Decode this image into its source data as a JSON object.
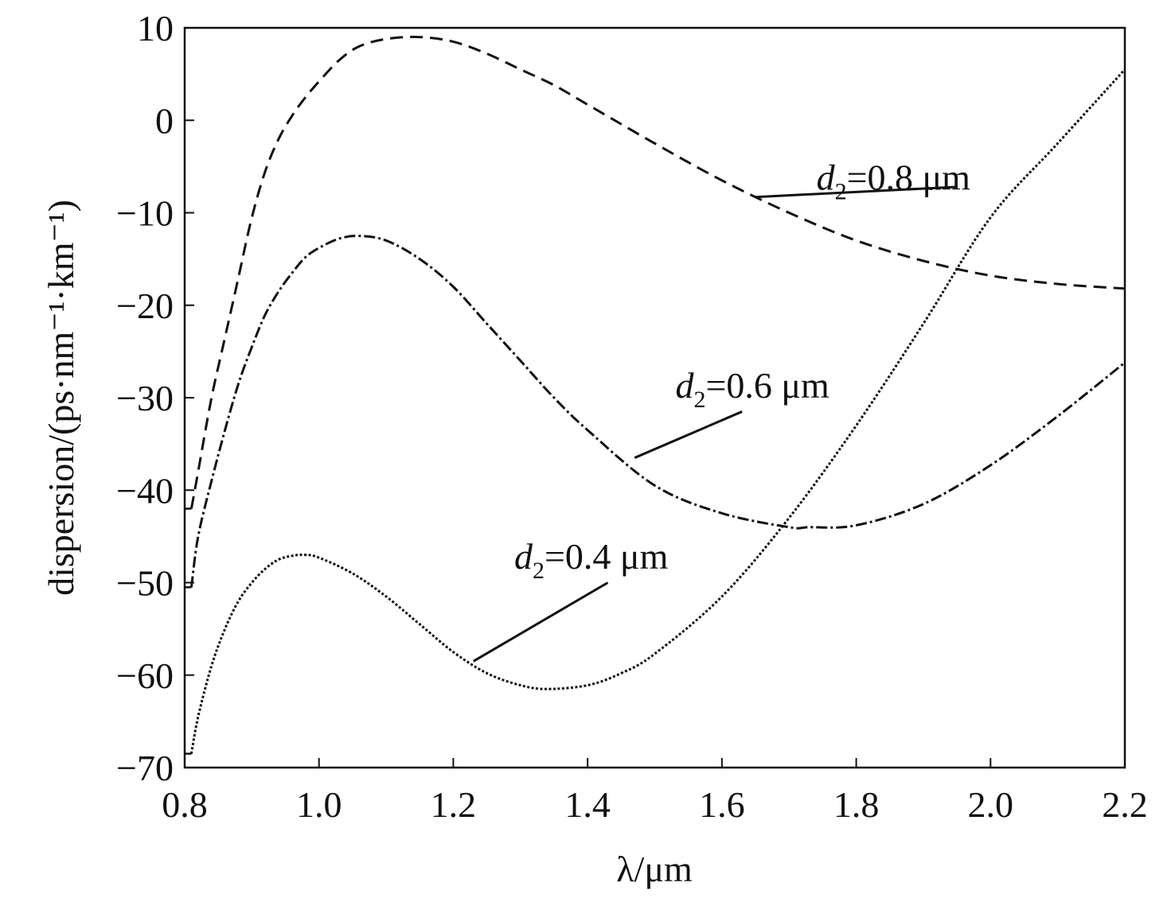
{
  "chart_data": {
    "type": "line",
    "title": "",
    "xlabel": "λ/μm",
    "ylabel": "dispersion/(ps·nm⁻¹·km⁻¹)",
    "xlim": [
      0.8,
      2.2
    ],
    "ylim": [
      -70,
      10
    ],
    "x_ticks": [
      "0.8",
      "1.0",
      "1.2",
      "1.4",
      "1.6",
      "1.8",
      "2.0",
      "2.2"
    ],
    "x_tick_values": [
      0.8,
      1.0,
      1.2,
      1.4,
      1.6,
      1.8,
      2.0,
      2.2
    ],
    "y_ticks": [
      "10",
      "0",
      "−10",
      "−20",
      "−30",
      "−40",
      "−50",
      "−60",
      "−70"
    ],
    "y_tick_values": [
      10,
      0,
      -10,
      -20,
      -30,
      -40,
      -50,
      -60,
      -70
    ],
    "grid": false,
    "legend": "none",
    "series": [
      {
        "label_var": "d",
        "label_sub": "2",
        "label_value": "=0.8 μm",
        "style": "dashed",
        "color": "#111111",
        "x": [
          0.81,
          0.82,
          0.84,
          0.86,
          0.88,
          0.9,
          0.92,
          0.94,
          0.96,
          0.98,
          1.0,
          1.03,
          1.06,
          1.1,
          1.15,
          1.2,
          1.25,
          1.3,
          1.35,
          1.4,
          1.5,
          1.6,
          1.7,
          1.8,
          1.9,
          2.0,
          2.1,
          2.2
        ],
        "y": [
          -42,
          -38,
          -30,
          -23.5,
          -17,
          -10.5,
          -5.5,
          -2,
          0.5,
          2.5,
          4.2,
          6.5,
          8,
          8.8,
          9,
          8.5,
          7.2,
          5.5,
          3.8,
          1.7,
          -2.5,
          -6.5,
          -10,
          -13,
          -15.2,
          -16.8,
          -17.7,
          -18.2
        ]
      },
      {
        "label_var": "d",
        "label_sub": "2",
        "label_value": "=0.6 μm",
        "style": "dash-dot",
        "color": "#111111",
        "x": [
          0.81,
          0.82,
          0.84,
          0.86,
          0.88,
          0.9,
          0.92,
          0.94,
          0.96,
          0.98,
          1.0,
          1.03,
          1.06,
          1.1,
          1.15,
          1.2,
          1.25,
          1.3,
          1.35,
          1.4,
          1.5,
          1.6,
          1.7,
          1.73,
          1.8,
          1.9,
          2.0,
          2.1,
          2.2
        ],
        "y": [
          -50.5,
          -45,
          -39,
          -33.5,
          -28.5,
          -24.5,
          -21,
          -18.5,
          -16.5,
          -14.8,
          -13.8,
          -12.8,
          -12.5,
          -13,
          -15,
          -18,
          -22,
          -26,
          -30,
          -33.5,
          -39.5,
          -42.5,
          -44,
          -44,
          -43.8,
          -41.5,
          -37.3,
          -32,
          -26.2
        ]
      },
      {
        "label_var": "d",
        "label_sub": "2",
        "label_value": "=0.4 μm",
        "style": "dotted",
        "color": "#111111",
        "x": [
          0.81,
          0.82,
          0.84,
          0.86,
          0.88,
          0.9,
          0.92,
          0.94,
          0.96,
          0.98,
          1.0,
          1.05,
          1.1,
          1.15,
          1.2,
          1.25,
          1.3,
          1.34,
          1.4,
          1.45,
          1.5,
          1.6,
          1.7,
          1.8,
          1.9,
          2.0,
          2.1,
          2.2
        ],
        "y": [
          -68.5,
          -64.5,
          -59,
          -55,
          -52,
          -50,
          -48.5,
          -47.5,
          -47.1,
          -47,
          -47.3,
          -49,
          -51.5,
          -54.5,
          -57.5,
          -59.8,
          -61.1,
          -61.5,
          -61.1,
          -59.8,
          -57.7,
          -51.5,
          -43,
          -33,
          -22,
          -10.5,
          -2.5,
          5.5
        ]
      }
    ]
  }
}
